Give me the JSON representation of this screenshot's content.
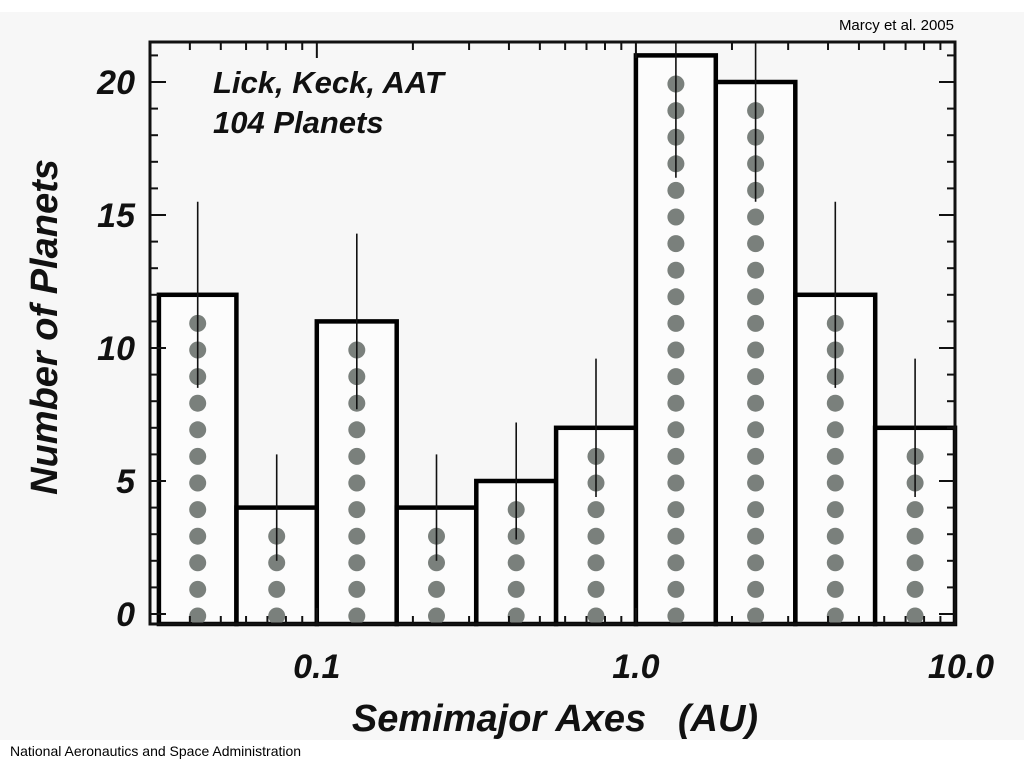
{
  "citation": "Marcy et al. 2005",
  "footer": "National Aeronautics and Space Administration",
  "colors": {
    "bar_outline": "#000000",
    "dot": "#7a807c",
    "plot_bg": "#f7f7f7"
  },
  "chart_data": {
    "type": "bar",
    "x_scale": "log",
    "xlim": [
      0.03,
      10.0
    ],
    "ylim": [
      0,
      22
    ],
    "xlabel": "Semimajor Axes   (AU)",
    "ylabel": "Number of Planets",
    "annotation": [
      "Lick, Keck, AAT",
      "104 Planets"
    ],
    "x_ticks": [
      {
        "value": 0.1,
        "label": "0.1"
      },
      {
        "value": 1.0,
        "label": "1.0"
      },
      {
        "value": 10.0,
        "label": "10.0"
      }
    ],
    "y_ticks": [
      {
        "value": 0,
        "label": "0"
      },
      {
        "value": 5,
        "label": "5"
      },
      {
        "value": 10,
        "label": "10"
      },
      {
        "value": 15,
        "label": "15"
      },
      {
        "value": 20,
        "label": "20"
      }
    ],
    "bins": [
      {
        "x_lo": 0.032,
        "x_hi": 0.056,
        "count": 12,
        "err": 3.5
      },
      {
        "x_lo": 0.056,
        "x_hi": 0.1,
        "count": 4,
        "err": 2.0
      },
      {
        "x_lo": 0.1,
        "x_hi": 0.178,
        "count": 11,
        "err": 3.3
      },
      {
        "x_lo": 0.178,
        "x_hi": 0.316,
        "count": 4,
        "err": 2.0
      },
      {
        "x_lo": 0.316,
        "x_hi": 0.562,
        "count": 5,
        "err": 2.2
      },
      {
        "x_lo": 0.562,
        "x_hi": 1.0,
        "count": 7,
        "err": 2.6
      },
      {
        "x_lo": 1.0,
        "x_hi": 1.78,
        "count": 21,
        "err": 4.6
      },
      {
        "x_lo": 1.78,
        "x_hi": 3.16,
        "count": 20,
        "err": 4.5
      },
      {
        "x_lo": 3.16,
        "x_hi": 5.62,
        "count": 12,
        "err": 3.5
      },
      {
        "x_lo": 5.62,
        "x_hi": 10.0,
        "count": 7,
        "err": 2.6
      }
    ]
  }
}
